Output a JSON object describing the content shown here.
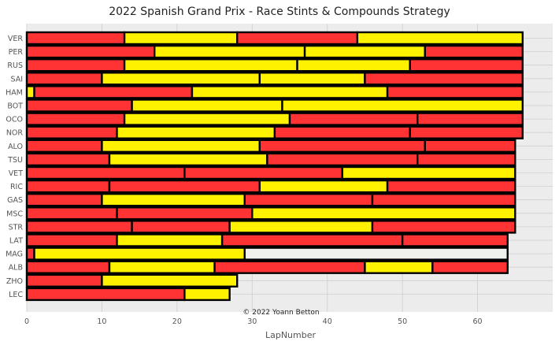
{
  "chart_data": {
    "type": "bar",
    "orientation": "horizontal-stacked",
    "title": "2022 Spanish Grand Prix - Race Stints & Compounds Strategy",
    "xlabel": "LapNumber",
    "ylabel": "",
    "xlim": [
      0,
      70
    ],
    "xticks": [
      0,
      10,
      20,
      30,
      40,
      50,
      60
    ],
    "grid": true,
    "credit": "© 2022 Yoann Betton",
    "compound_colors": {
      "SOFT": "#ff3333",
      "MEDIUM": "#fff200",
      "HARD": "#f0f0ec"
    },
    "drivers": [
      {
        "driver": "VER",
        "stints": [
          {
            "compound": "SOFT",
            "laps": 13
          },
          {
            "compound": "MEDIUM",
            "laps": 15
          },
          {
            "compound": "SOFT",
            "laps": 16
          },
          {
            "compound": "MEDIUM",
            "laps": 22
          }
        ]
      },
      {
        "driver": "PER",
        "stints": [
          {
            "compound": "SOFT",
            "laps": 17
          },
          {
            "compound": "MEDIUM",
            "laps": 20
          },
          {
            "compound": "MEDIUM",
            "laps": 16
          },
          {
            "compound": "SOFT",
            "laps": 13
          }
        ]
      },
      {
        "driver": "RUS",
        "stints": [
          {
            "compound": "SOFT",
            "laps": 13
          },
          {
            "compound": "MEDIUM",
            "laps": 23
          },
          {
            "compound": "MEDIUM",
            "laps": 15
          },
          {
            "compound": "SOFT",
            "laps": 15
          }
        ]
      },
      {
        "driver": "SAI",
        "stints": [
          {
            "compound": "SOFT",
            "laps": 10
          },
          {
            "compound": "MEDIUM",
            "laps": 21
          },
          {
            "compound": "MEDIUM",
            "laps": 14
          },
          {
            "compound": "SOFT",
            "laps": 21
          }
        ]
      },
      {
        "driver": "HAM",
        "stints": [
          {
            "compound": "MEDIUM",
            "laps": 1
          },
          {
            "compound": "SOFT",
            "laps": 21
          },
          {
            "compound": "MEDIUM",
            "laps": 26
          },
          {
            "compound": "SOFT",
            "laps": 18
          }
        ]
      },
      {
        "driver": "BOT",
        "stints": [
          {
            "compound": "SOFT",
            "laps": 14
          },
          {
            "compound": "MEDIUM",
            "laps": 20
          },
          {
            "compound": "MEDIUM",
            "laps": 32
          }
        ]
      },
      {
        "driver": "OCO",
        "stints": [
          {
            "compound": "SOFT",
            "laps": 13
          },
          {
            "compound": "MEDIUM",
            "laps": 22
          },
          {
            "compound": "SOFT",
            "laps": 17
          },
          {
            "compound": "SOFT",
            "laps": 14
          }
        ]
      },
      {
        "driver": "NOR",
        "stints": [
          {
            "compound": "SOFT",
            "laps": 12
          },
          {
            "compound": "MEDIUM",
            "laps": 21
          },
          {
            "compound": "SOFT",
            "laps": 18
          },
          {
            "compound": "SOFT",
            "laps": 15
          }
        ]
      },
      {
        "driver": "ALO",
        "stints": [
          {
            "compound": "SOFT",
            "laps": 10
          },
          {
            "compound": "MEDIUM",
            "laps": 21
          },
          {
            "compound": "SOFT",
            "laps": 22
          },
          {
            "compound": "SOFT",
            "laps": 12
          }
        ]
      },
      {
        "driver": "TSU",
        "stints": [
          {
            "compound": "SOFT",
            "laps": 11
          },
          {
            "compound": "MEDIUM",
            "laps": 21
          },
          {
            "compound": "SOFT",
            "laps": 20
          },
          {
            "compound": "SOFT",
            "laps": 13
          }
        ]
      },
      {
        "driver": "VET",
        "stints": [
          {
            "compound": "SOFT",
            "laps": 21
          },
          {
            "compound": "SOFT",
            "laps": 21
          },
          {
            "compound": "MEDIUM",
            "laps": 23
          }
        ]
      },
      {
        "driver": "RIC",
        "stints": [
          {
            "compound": "SOFT",
            "laps": 11
          },
          {
            "compound": "SOFT",
            "laps": 20
          },
          {
            "compound": "MEDIUM",
            "laps": 17
          },
          {
            "compound": "SOFT",
            "laps": 17
          }
        ]
      },
      {
        "driver": "GAS",
        "stints": [
          {
            "compound": "SOFT",
            "laps": 10
          },
          {
            "compound": "MEDIUM",
            "laps": 19
          },
          {
            "compound": "SOFT",
            "laps": 17
          },
          {
            "compound": "SOFT",
            "laps": 19
          }
        ]
      },
      {
        "driver": "MSC",
        "stints": [
          {
            "compound": "SOFT",
            "laps": 12
          },
          {
            "compound": "SOFT",
            "laps": 18
          },
          {
            "compound": "MEDIUM",
            "laps": 35
          }
        ]
      },
      {
        "driver": "STR",
        "stints": [
          {
            "compound": "SOFT",
            "laps": 14
          },
          {
            "compound": "SOFT",
            "laps": 13
          },
          {
            "compound": "MEDIUM",
            "laps": 19
          },
          {
            "compound": "SOFT",
            "laps": 19
          }
        ]
      },
      {
        "driver": "LAT",
        "stints": [
          {
            "compound": "SOFT",
            "laps": 12
          },
          {
            "compound": "MEDIUM",
            "laps": 14
          },
          {
            "compound": "SOFT",
            "laps": 24
          },
          {
            "compound": "SOFT",
            "laps": 14
          }
        ]
      },
      {
        "driver": "MAG",
        "stints": [
          {
            "compound": "SOFT",
            "laps": 1
          },
          {
            "compound": "MEDIUM",
            "laps": 28
          },
          {
            "compound": "HARD",
            "laps": 35
          }
        ]
      },
      {
        "driver": "ALB",
        "stints": [
          {
            "compound": "SOFT",
            "laps": 11
          },
          {
            "compound": "MEDIUM",
            "laps": 14
          },
          {
            "compound": "SOFT",
            "laps": 20
          },
          {
            "compound": "MEDIUM",
            "laps": 9
          },
          {
            "compound": "SOFT",
            "laps": 10
          }
        ]
      },
      {
        "driver": "ZHO",
        "stints": [
          {
            "compound": "SOFT",
            "laps": 10
          },
          {
            "compound": "MEDIUM",
            "laps": 18
          }
        ]
      },
      {
        "driver": "LEC",
        "stints": [
          {
            "compound": "SOFT",
            "laps": 21
          },
          {
            "compound": "MEDIUM",
            "laps": 6
          }
        ]
      }
    ]
  }
}
